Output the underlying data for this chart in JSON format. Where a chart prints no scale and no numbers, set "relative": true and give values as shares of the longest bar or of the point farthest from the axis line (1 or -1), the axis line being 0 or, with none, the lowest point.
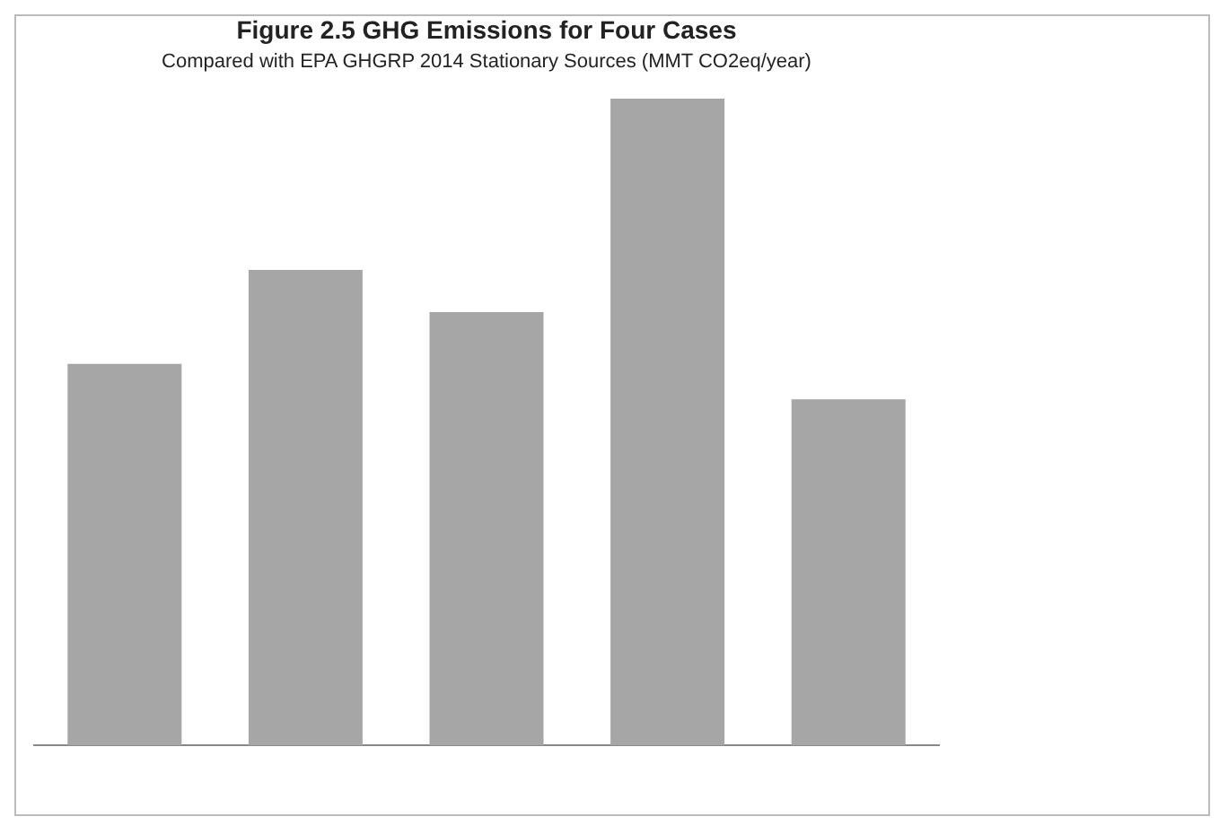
{
  "chart_data": {
    "type": "bar",
    "title": "Figure 2.5 GHG Emissions for Four Cases",
    "subtitle": "Compared with EPA GHGRP 2014 Stationary Sources (MMT CO2eq/year)",
    "categories": [
      null,
      null,
      null,
      null,
      null
    ],
    "values": [
      0.59,
      0.735,
      0.67,
      1,
      0.535
    ],
    "color": "#a6a6a6",
    "relative": true
  }
}
